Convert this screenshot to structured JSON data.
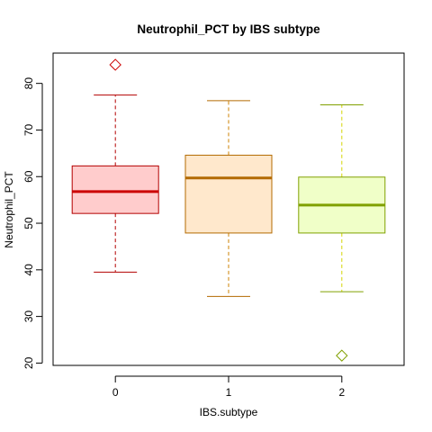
{
  "chart_data": {
    "type": "boxplot",
    "title": "Neutrophil_PCT by IBS subtype",
    "xlabel": "IBS.subtype",
    "ylabel": "Neutrophil_PCT",
    "categories": [
      "0",
      "1",
      "2"
    ],
    "ylim": [
      19.5,
      86.5
    ],
    "yticks": [
      20,
      30,
      40,
      50,
      60,
      70,
      80
    ],
    "grid": false,
    "legend": "none",
    "boxes": [
      {
        "category": "0",
        "whisker_low": 39.5,
        "q1": 52.1,
        "median": 56.8,
        "q3": 62.3,
        "whisker_high": 77.5,
        "outliers": [
          84.0
        ],
        "fill": "#ffcccc",
        "border": "#b30000",
        "median_color": "#cc0000",
        "whisker_color": "#b30000"
      },
      {
        "category": "1",
        "whisker_low": 34.3,
        "q1": 47.9,
        "median": 59.7,
        "q3": 64.6,
        "whisker_high": 76.3,
        "outliers": [],
        "fill": "#ffe8cc",
        "border": "#b36a00",
        "median_color": "#b36a00",
        "whisker_color": "#cc8000"
      },
      {
        "category": "2",
        "whisker_low": 35.3,
        "q1": 47.9,
        "median": 53.9,
        "q3": 59.9,
        "whisker_high": 75.4,
        "outliers": [
          21.6
        ],
        "fill": "#f0ffc8",
        "border": "#80a000",
        "median_color": "#80a000",
        "whisker_color": "#d4d400"
      }
    ]
  }
}
